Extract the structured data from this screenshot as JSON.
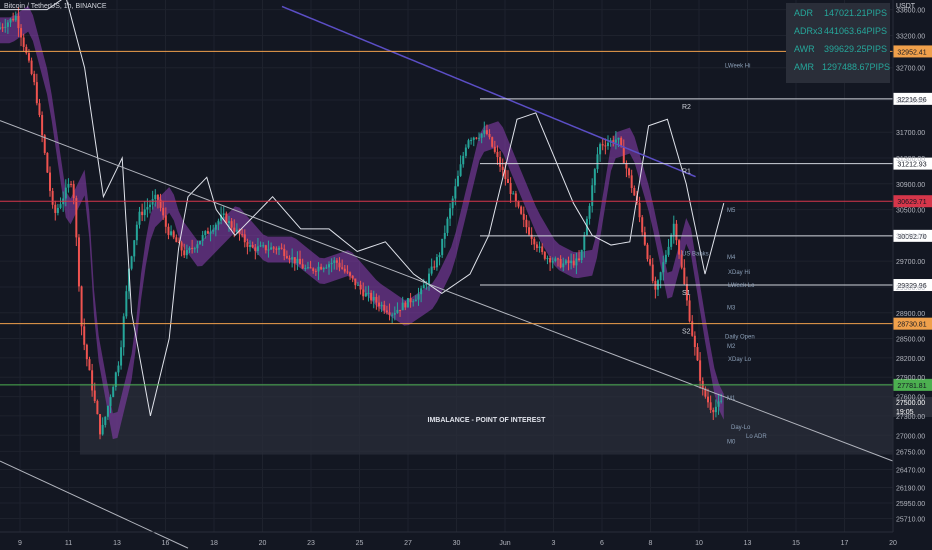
{
  "title": "Bitcoin / TetherUS, 1h, BINANCE",
  "currency": "USDT",
  "stats": [
    {
      "label": "ADR",
      "value": "147021.21PIPS"
    },
    {
      "label": "ADRx3",
      "value": "441063.64PIPS"
    },
    {
      "label": "AWR",
      "value": "399629.25PIPS"
    },
    {
      "label": "AMR",
      "value": "1297488.67PIPS"
    }
  ],
  "colors": {
    "background": "#131722",
    "grid": "#1e222d",
    "up": "#26a69a",
    "down": "#ef5350",
    "ma_band": "#8e3fb5",
    "orange": "#f0a04b",
    "red_level": "#d6364a",
    "green_level": "#4caf50",
    "vwap": "#5b4ec5",
    "text": "#d1d4dc"
  },
  "annotations": [
    {
      "text": "IMBALANCE - POINT OF INTEREST"
    },
    {
      "text": "LWeek Hi"
    },
    {
      "text": "LWeek Lo"
    },
    {
      "text": "R2"
    },
    {
      "text": "R1"
    },
    {
      "text": "S1"
    },
    {
      "text": "S2"
    },
    {
      "text": "M5"
    },
    {
      "text": "M4"
    },
    {
      "text": "M3"
    },
    {
      "text": "M2"
    },
    {
      "text": "M1"
    },
    {
      "text": "M0"
    },
    {
      "text": "US Banks"
    },
    {
      "text": "XDay Hi"
    },
    {
      "text": "XDay Lo"
    },
    {
      "text": "Daily Open"
    },
    {
      "text": "Day-Lo"
    },
    {
      "text": "Lo ADR"
    }
  ],
  "chart_data": {
    "type": "candlestick",
    "title": "Bitcoin / TetherUS, 1h, BINANCE",
    "xlabel": "",
    "ylabel": "USDT",
    "ylim": [
      25500,
      33750
    ],
    "yticks": [
      25710,
      25950,
      26190,
      26470,
      26750,
      27000,
      27300,
      27600,
      27900,
      28200,
      28500,
      28900,
      29300,
      29700,
      30100,
      30500,
      30900,
      31300,
      31700,
      32200,
      32700,
      33200,
      33600
    ],
    "xticks": [
      "9",
      "11",
      "13",
      "16",
      "18",
      "20",
      "23",
      "25",
      "27",
      "30",
      "Jun",
      "3",
      "6",
      "8",
      "10",
      "13",
      "15",
      "17",
      "20"
    ],
    "price_path": [
      [
        0,
        33300
      ],
      [
        2,
        33500
      ],
      [
        4,
        32400
      ],
      [
        6,
        30400
      ],
      [
        8,
        31000
      ],
      [
        9,
        28600
      ],
      [
        11,
        27000
      ],
      [
        13,
        28200
      ],
      [
        14,
        29600
      ],
      [
        15,
        30400
      ],
      [
        17,
        30700
      ],
      [
        18,
        30200
      ],
      [
        20,
        29800
      ],
      [
        22,
        30100
      ],
      [
        24,
        30400
      ],
      [
        27,
        29900
      ],
      [
        30,
        29900
      ],
      [
        33,
        29550
      ],
      [
        36,
        29700
      ],
      [
        39,
        29200
      ],
      [
        42,
        28900
      ],
      [
        45,
        29200
      ],
      [
        47,
        29800
      ],
      [
        50,
        31600
      ],
      [
        52,
        31700
      ],
      [
        54,
        31000
      ],
      [
        56,
        30300
      ],
      [
        58,
        29800
      ],
      [
        60,
        29650
      ],
      [
        62,
        29700
      ],
      [
        64,
        31500
      ],
      [
        66,
        31600
      ],
      [
        68,
        30600
      ],
      [
        70,
        29200
      ],
      [
        72,
        30300
      ],
      [
        74,
        28500
      ],
      [
        75,
        27700
      ],
      [
        76,
        27400
      ],
      [
        77,
        27500
      ]
    ],
    "levels": [
      {
        "name": "",
        "value": 32952.41,
        "color": "orange"
      },
      {
        "name": "R2",
        "value": 32216.96,
        "color": "white"
      },
      {
        "name": "R1",
        "value": 31212.93,
        "color": "white"
      },
      {
        "name": "",
        "value": 30629.71,
        "color": "red"
      },
      {
        "name": "",
        "value": 30092.7,
        "color": "white"
      },
      {
        "name": "S1",
        "value": 29329.96,
        "color": "white"
      },
      {
        "name": "S2",
        "value": 28730.81,
        "color": "orange"
      },
      {
        "name": "",
        "value": 27781.81,
        "color": "green"
      }
    ],
    "last_price": {
      "value": "27500.00",
      "countdown": "19:05"
    },
    "trendlines": [
      {
        "from": [
          0,
          31880
        ],
        "to": [
          95,
          26600
        ]
      },
      {
        "from": [
          0,
          26600
        ],
        "to": [
          20,
          25250
        ]
      }
    ],
    "zones": [
      {
        "label": "IMBALANCE - POINT OF INTEREST",
        "from": [
          8.5,
          27800
        ],
        "to": [
          95,
          26700
        ]
      }
    ],
    "grid": true,
    "legend": "none"
  }
}
